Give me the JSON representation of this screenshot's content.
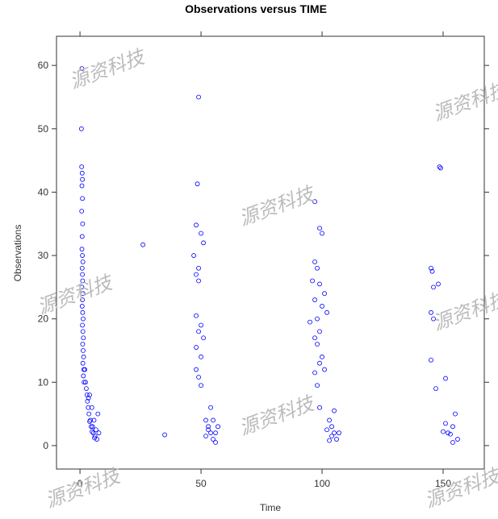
{
  "chart_data": {
    "type": "scatter",
    "title": "Observations versus TIME",
    "x_label": "Time",
    "y_label": "Observations",
    "watermark": "源资科技",
    "color": "#0000ff",
    "xlim": [
      -9.7,
      167
    ],
    "ylim": [
      -3.7,
      64.6
    ],
    "xticks": [
      0,
      50,
      100,
      150
    ],
    "yticks": [
      0,
      10,
      20,
      30,
      40,
      50,
      60
    ],
    "x": [
      0.8,
      0.6,
      0.7,
      0.9,
      1,
      0.8,
      1,
      0.7,
      1.1,
      0.9,
      0.8,
      1,
      1.2,
      0.9,
      1,
      1.1,
      0.8,
      1.2,
      1,
      0.9,
      1.1,
      1.3,
      1,
      1.2,
      1.4,
      1.1,
      1.3,
      1.5,
      1.2,
      1.6,
      1.4,
      1.7,
      2,
      2.3,
      2.6,
      2.9,
      3.1,
      3.4,
      3.7,
      4,
      4.3,
      4.6,
      4.9,
      5.2,
      5.5,
      5.8,
      6.2,
      6.6,
      7,
      7.4,
      7.8,
      6,
      5,
      4,
      3.5,
      26,
      35,
      49,
      48.5,
      48,
      50,
      51,
      47,
      49,
      48,
      49,
      48,
      50,
      49,
      51,
      48,
      50,
      49,
      50,
      48,
      52,
      53,
      54,
      55,
      56,
      53,
      55,
      57,
      54,
      52,
      56,
      97,
      99,
      100,
      97,
      98,
      96,
      99,
      101,
      97,
      100,
      102,
      98,
      95,
      99,
      97,
      98,
      100,
      99,
      101,
      97,
      98,
      103,
      104,
      105,
      106,
      102,
      104,
      107,
      103,
      105,
      99,
      148.5,
      149,
      145,
      145.5,
      146,
      148,
      145,
      146,
      145,
      147,
      151,
      151,
      152,
      153,
      150,
      154,
      155,
      156,
      154
    ],
    "y": [
      59.5,
      50,
      44,
      43,
      42,
      41,
      39,
      37,
      35,
      33,
      31,
      30,
      29,
      28,
      27,
      26,
      25,
      24,
      23,
      22,
      21,
      20,
      19,
      18,
      17,
      16,
      15,
      14,
      13,
      12,
      11,
      10,
      12,
      10,
      9,
      8,
      7,
      6,
      5,
      8,
      4,
      3,
      6,
      3,
      2,
      4,
      1.5,
      2.5,
      1,
      5,
      2,
      1.2,
      2.2,
      3.8,
      7.5,
      31.7,
      1.7,
      55,
      41.3,
      34.8,
      33.5,
      32,
      30,
      28,
      27,
      26,
      20.5,
      19,
      18,
      17,
      15.5,
      14,
      10.8,
      9.5,
      12,
      4,
      3,
      2,
      1,
      0.5,
      2.5,
      4,
      3,
      6,
      1.5,
      2,
      38.5,
      34.3,
      33.5,
      29,
      28,
      26,
      25.5,
      24,
      23,
      22,
      21,
      20,
      19.5,
      18,
      17,
      16,
      14,
      13,
      12,
      11.5,
      9.5,
      4,
      3,
      2,
      1,
      2.5,
      1.5,
      2,
      0.8,
      5.5,
      6,
      44,
      43.8,
      28,
      27.5,
      25,
      25.5,
      21,
      20,
      13.5,
      9,
      10.6,
      3.5,
      2,
      1.8,
      2.2,
      3,
      5,
      1,
      0.5
    ]
  }
}
